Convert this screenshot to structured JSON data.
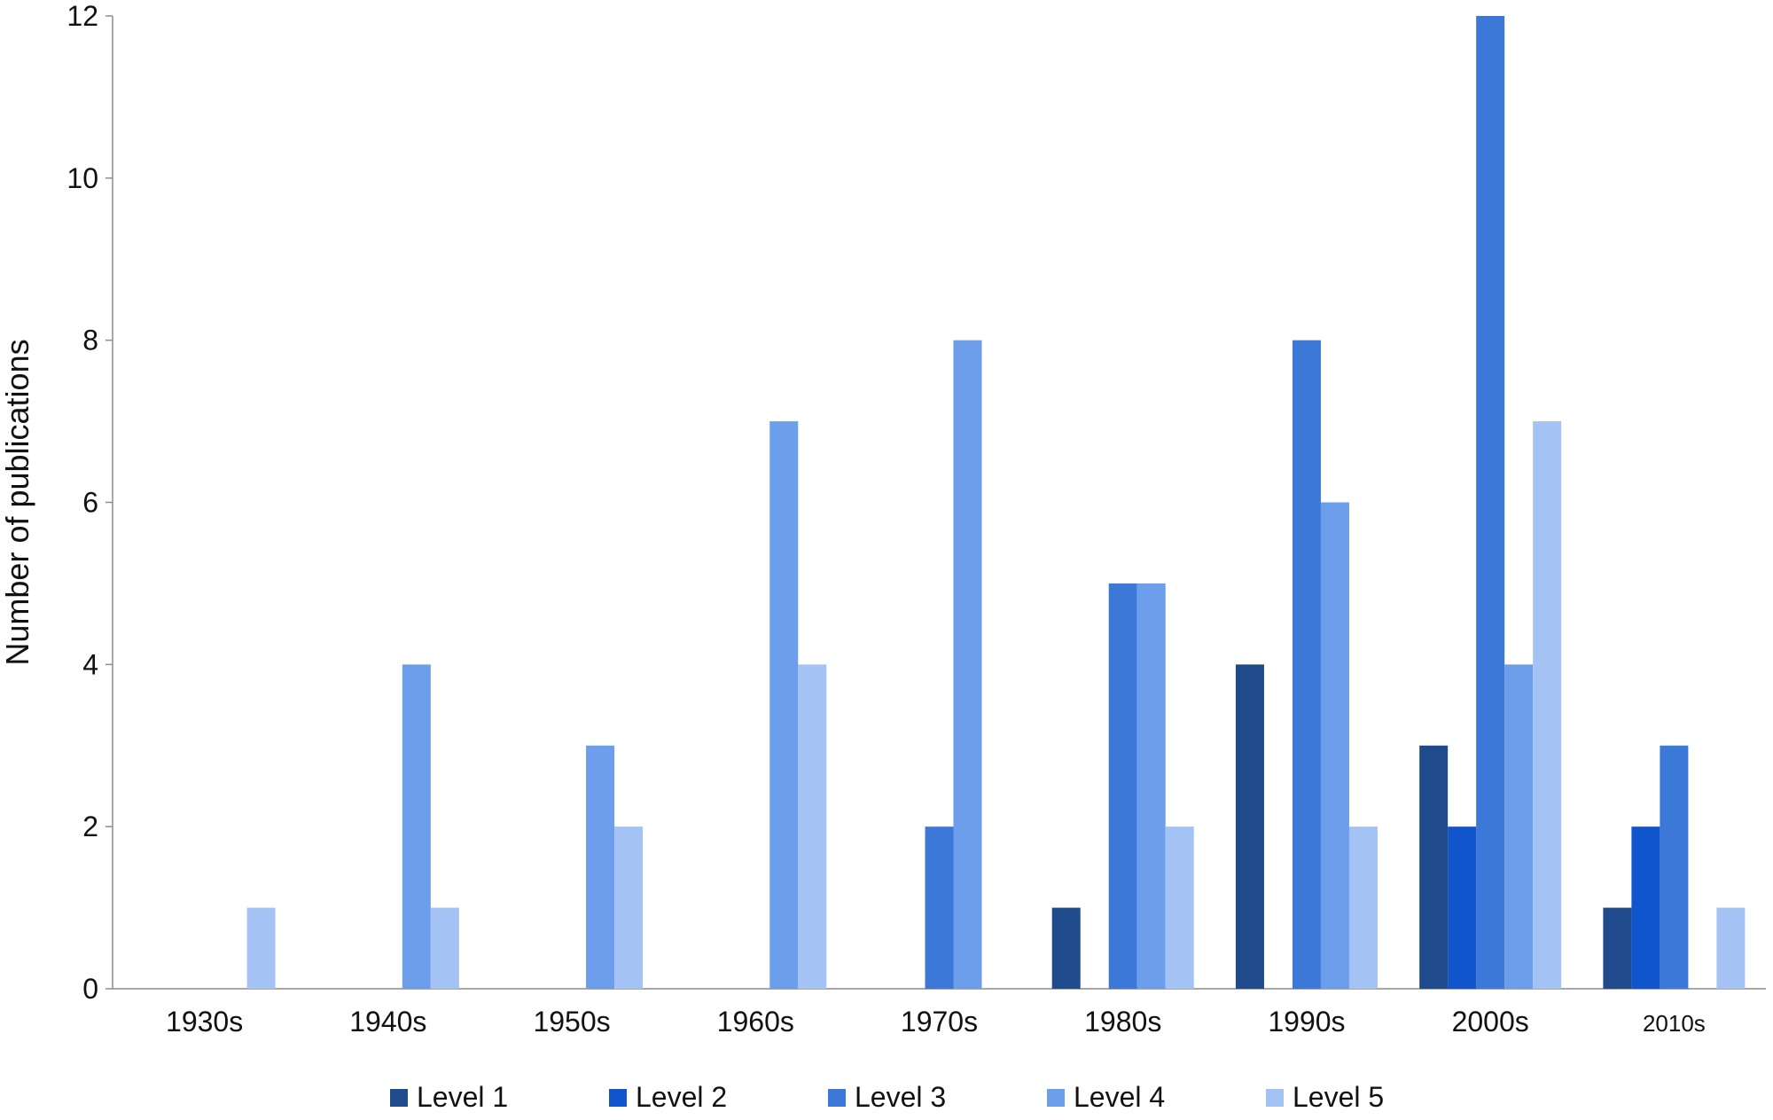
{
  "chart_data": {
    "type": "bar",
    "title": "",
    "xlabel": "",
    "ylabel": "Number of publications",
    "ylim": [
      0,
      12
    ],
    "yticks": [
      0,
      2,
      4,
      6,
      8,
      10,
      12
    ],
    "grid": false,
    "legend_position": "bottom",
    "categories": [
      "1930s",
      "1940s",
      "1950s",
      "1960s",
      "1970s",
      "1980s",
      "1990s",
      "2000s",
      "2010s"
    ],
    "series": [
      {
        "name": "Level 1",
        "color": "#1f4a8c",
        "values": [
          0,
          0,
          0,
          0,
          0,
          1,
          4,
          3,
          1
        ]
      },
      {
        "name": "Level 2",
        "color": "#1155cc",
        "values": [
          0,
          0,
          0,
          0,
          0,
          0,
          0,
          2,
          2
        ]
      },
      {
        "name": "Level 3",
        "color": "#3c78d8",
        "values": [
          0,
          0,
          0,
          0,
          2,
          5,
          8,
          12,
          3
        ]
      },
      {
        "name": "Level 4",
        "color": "#6d9eeb",
        "values": [
          0,
          4,
          3,
          7,
          8,
          5,
          6,
          4,
          0
        ]
      },
      {
        "name": "Level 5",
        "color": "#a4c2f4",
        "values": [
          1,
          1,
          2,
          4,
          0,
          2,
          2,
          7,
          1
        ]
      }
    ]
  }
}
